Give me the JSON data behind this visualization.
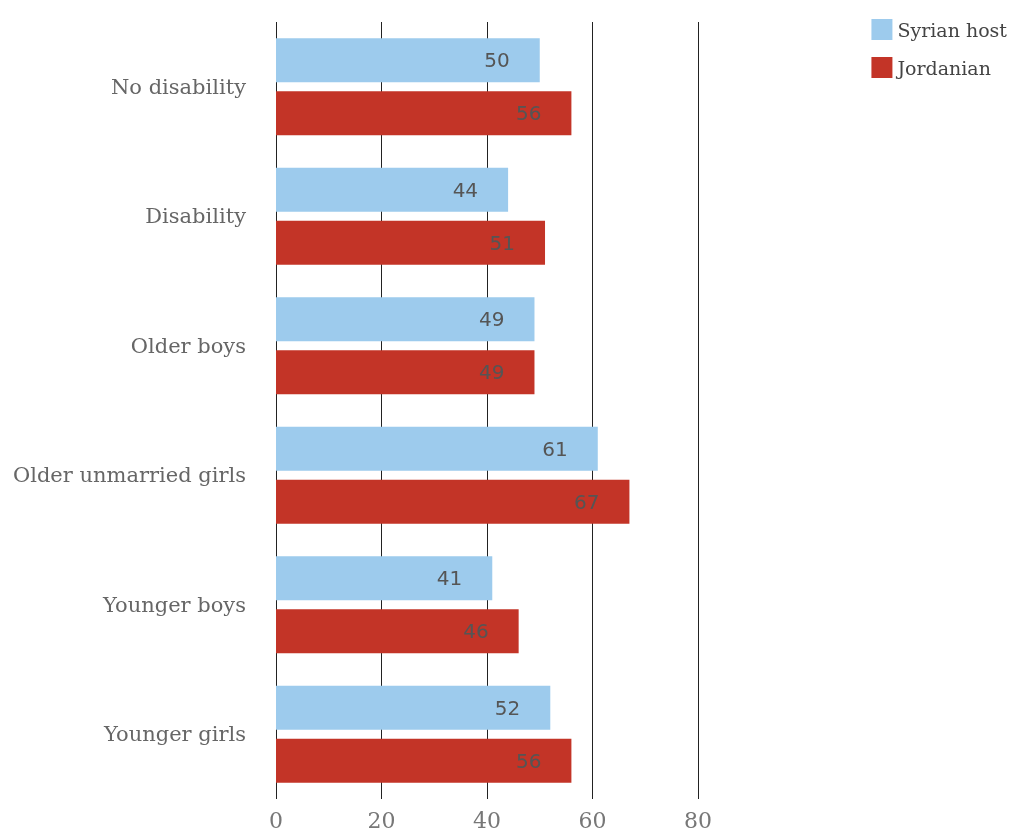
{
  "chart_data": {
    "type": "bar",
    "orientation": "horizontal",
    "categories": [
      "No disability",
      "Disability",
      "Older boys",
      "Older unmarried girls",
      "Younger boys",
      "Younger girls"
    ],
    "series": [
      {
        "name": "Syrian host",
        "color": "#9dcbed",
        "values": [
          50,
          44,
          49,
          61,
          41,
          52
        ]
      },
      {
        "name": "Jordanian",
        "color": "#c33427",
        "values": [
          56,
          51,
          49,
          67,
          46,
          56
        ]
      }
    ],
    "xlim": [
      0,
      80
    ],
    "xticks": [
      0,
      20,
      40,
      60,
      80
    ],
    "grid": "x",
    "legend": "top right",
    "data_labels": true
  }
}
